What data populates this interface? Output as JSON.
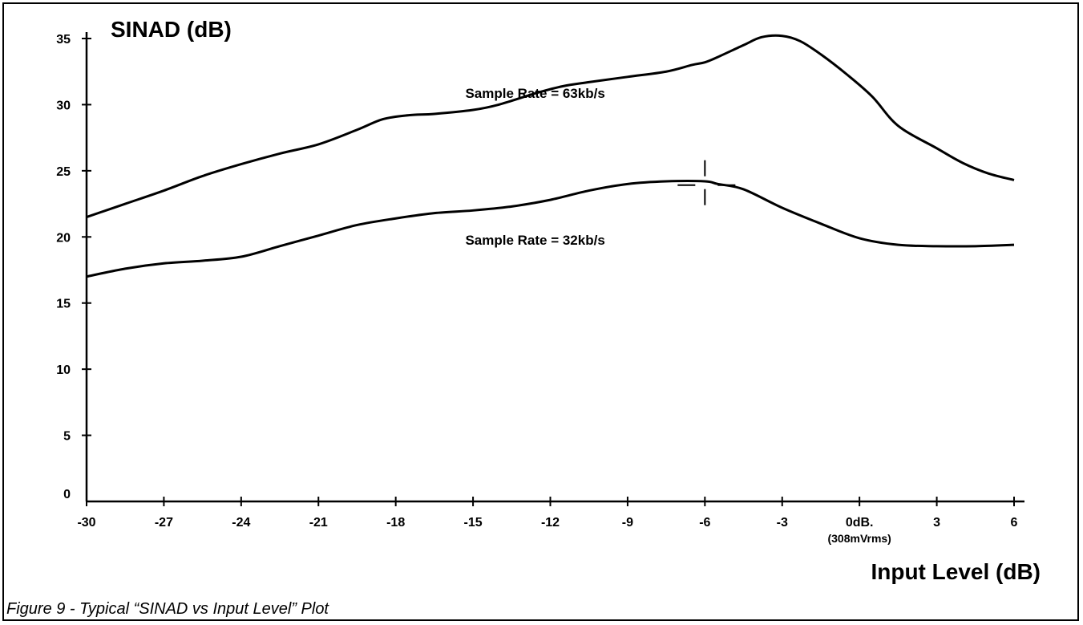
{
  "caption": "Figure 9  -  Typical “SINAD vs Input Level” Plot",
  "chart_data": {
    "type": "line",
    "ylabel": "SINAD (dB)",
    "xlabel": "Input Level (dB)",
    "xlim": [
      -30,
      6
    ],
    "ylim": [
      0,
      35
    ],
    "grid": false,
    "x_ticks": [
      -30,
      -27,
      -24,
      -21,
      -18,
      -15,
      -12,
      -9,
      -6,
      -3,
      0,
      3,
      6
    ],
    "x_tick_labels": [
      "-30",
      "-27",
      "-24",
      "-21",
      "-18",
      "-15",
      "-12",
      "-9",
      "-6",
      "-3",
      "0dB.",
      "3",
      "6"
    ],
    "x_tick_sublabel": {
      "at": 0,
      "text": "(308mVrms)"
    },
    "y_ticks": [
      0,
      5,
      10,
      15,
      20,
      25,
      30,
      35
    ],
    "y_tick_labels": [
      "0",
      "5",
      "10",
      "15",
      "20",
      "25",
      "30",
      "35"
    ],
    "series": [
      {
        "name": "Sample Rate = 63kb/s",
        "label_at": [
          -15.3,
          30.5
        ],
        "x": [
          -30,
          -28.5,
          -27,
          -25.5,
          -24,
          -22.5,
          -21,
          -19.5,
          -18.5,
          -17.5,
          -16.5,
          -15,
          -14,
          -12.5,
          -11.5,
          -10.5,
          -9,
          -7.5,
          -6.5,
          -6,
          -5.5,
          -4.5,
          -3.8,
          -3,
          -2.3,
          -1.5,
          -0.5,
          0.5,
          1.5,
          3,
          4,
          5,
          6
        ],
        "y": [
          21.5,
          22.5,
          23.5,
          24.6,
          25.5,
          26.3,
          27.0,
          28.1,
          28.9,
          29.2,
          29.3,
          29.6,
          30.0,
          30.9,
          31.4,
          31.7,
          32.1,
          32.5,
          33.0,
          33.2,
          33.6,
          34.5,
          35.1,
          35.2,
          34.8,
          33.8,
          32.3,
          30.6,
          28.4,
          26.7,
          25.6,
          24.8,
          24.3
        ]
      },
      {
        "name": "Sample Rate = 32kb/s",
        "label_at": [
          -15.3,
          19.4
        ],
        "x": [
          -30,
          -28.5,
          -27,
          -25.5,
          -24,
          -22.5,
          -21,
          -19.5,
          -18,
          -16.5,
          -15,
          -13.5,
          -12,
          -10.5,
          -9,
          -7.5,
          -6,
          -5.5,
          -4.5,
          -3,
          -1.5,
          0,
          1.5,
          3,
          4.5,
          6
        ],
        "y": [
          17.0,
          17.6,
          18.0,
          18.2,
          18.5,
          19.3,
          20.1,
          20.9,
          21.4,
          21.8,
          22.0,
          22.3,
          22.8,
          23.5,
          24.0,
          24.2,
          24.2,
          24.0,
          23.6,
          22.2,
          21.0,
          19.9,
          19.4,
          19.3,
          19.3,
          19.4
        ]
      }
    ],
    "annotations": [
      {
        "type": "crosshair",
        "x": -6,
        "y": 24.1
      }
    ]
  }
}
